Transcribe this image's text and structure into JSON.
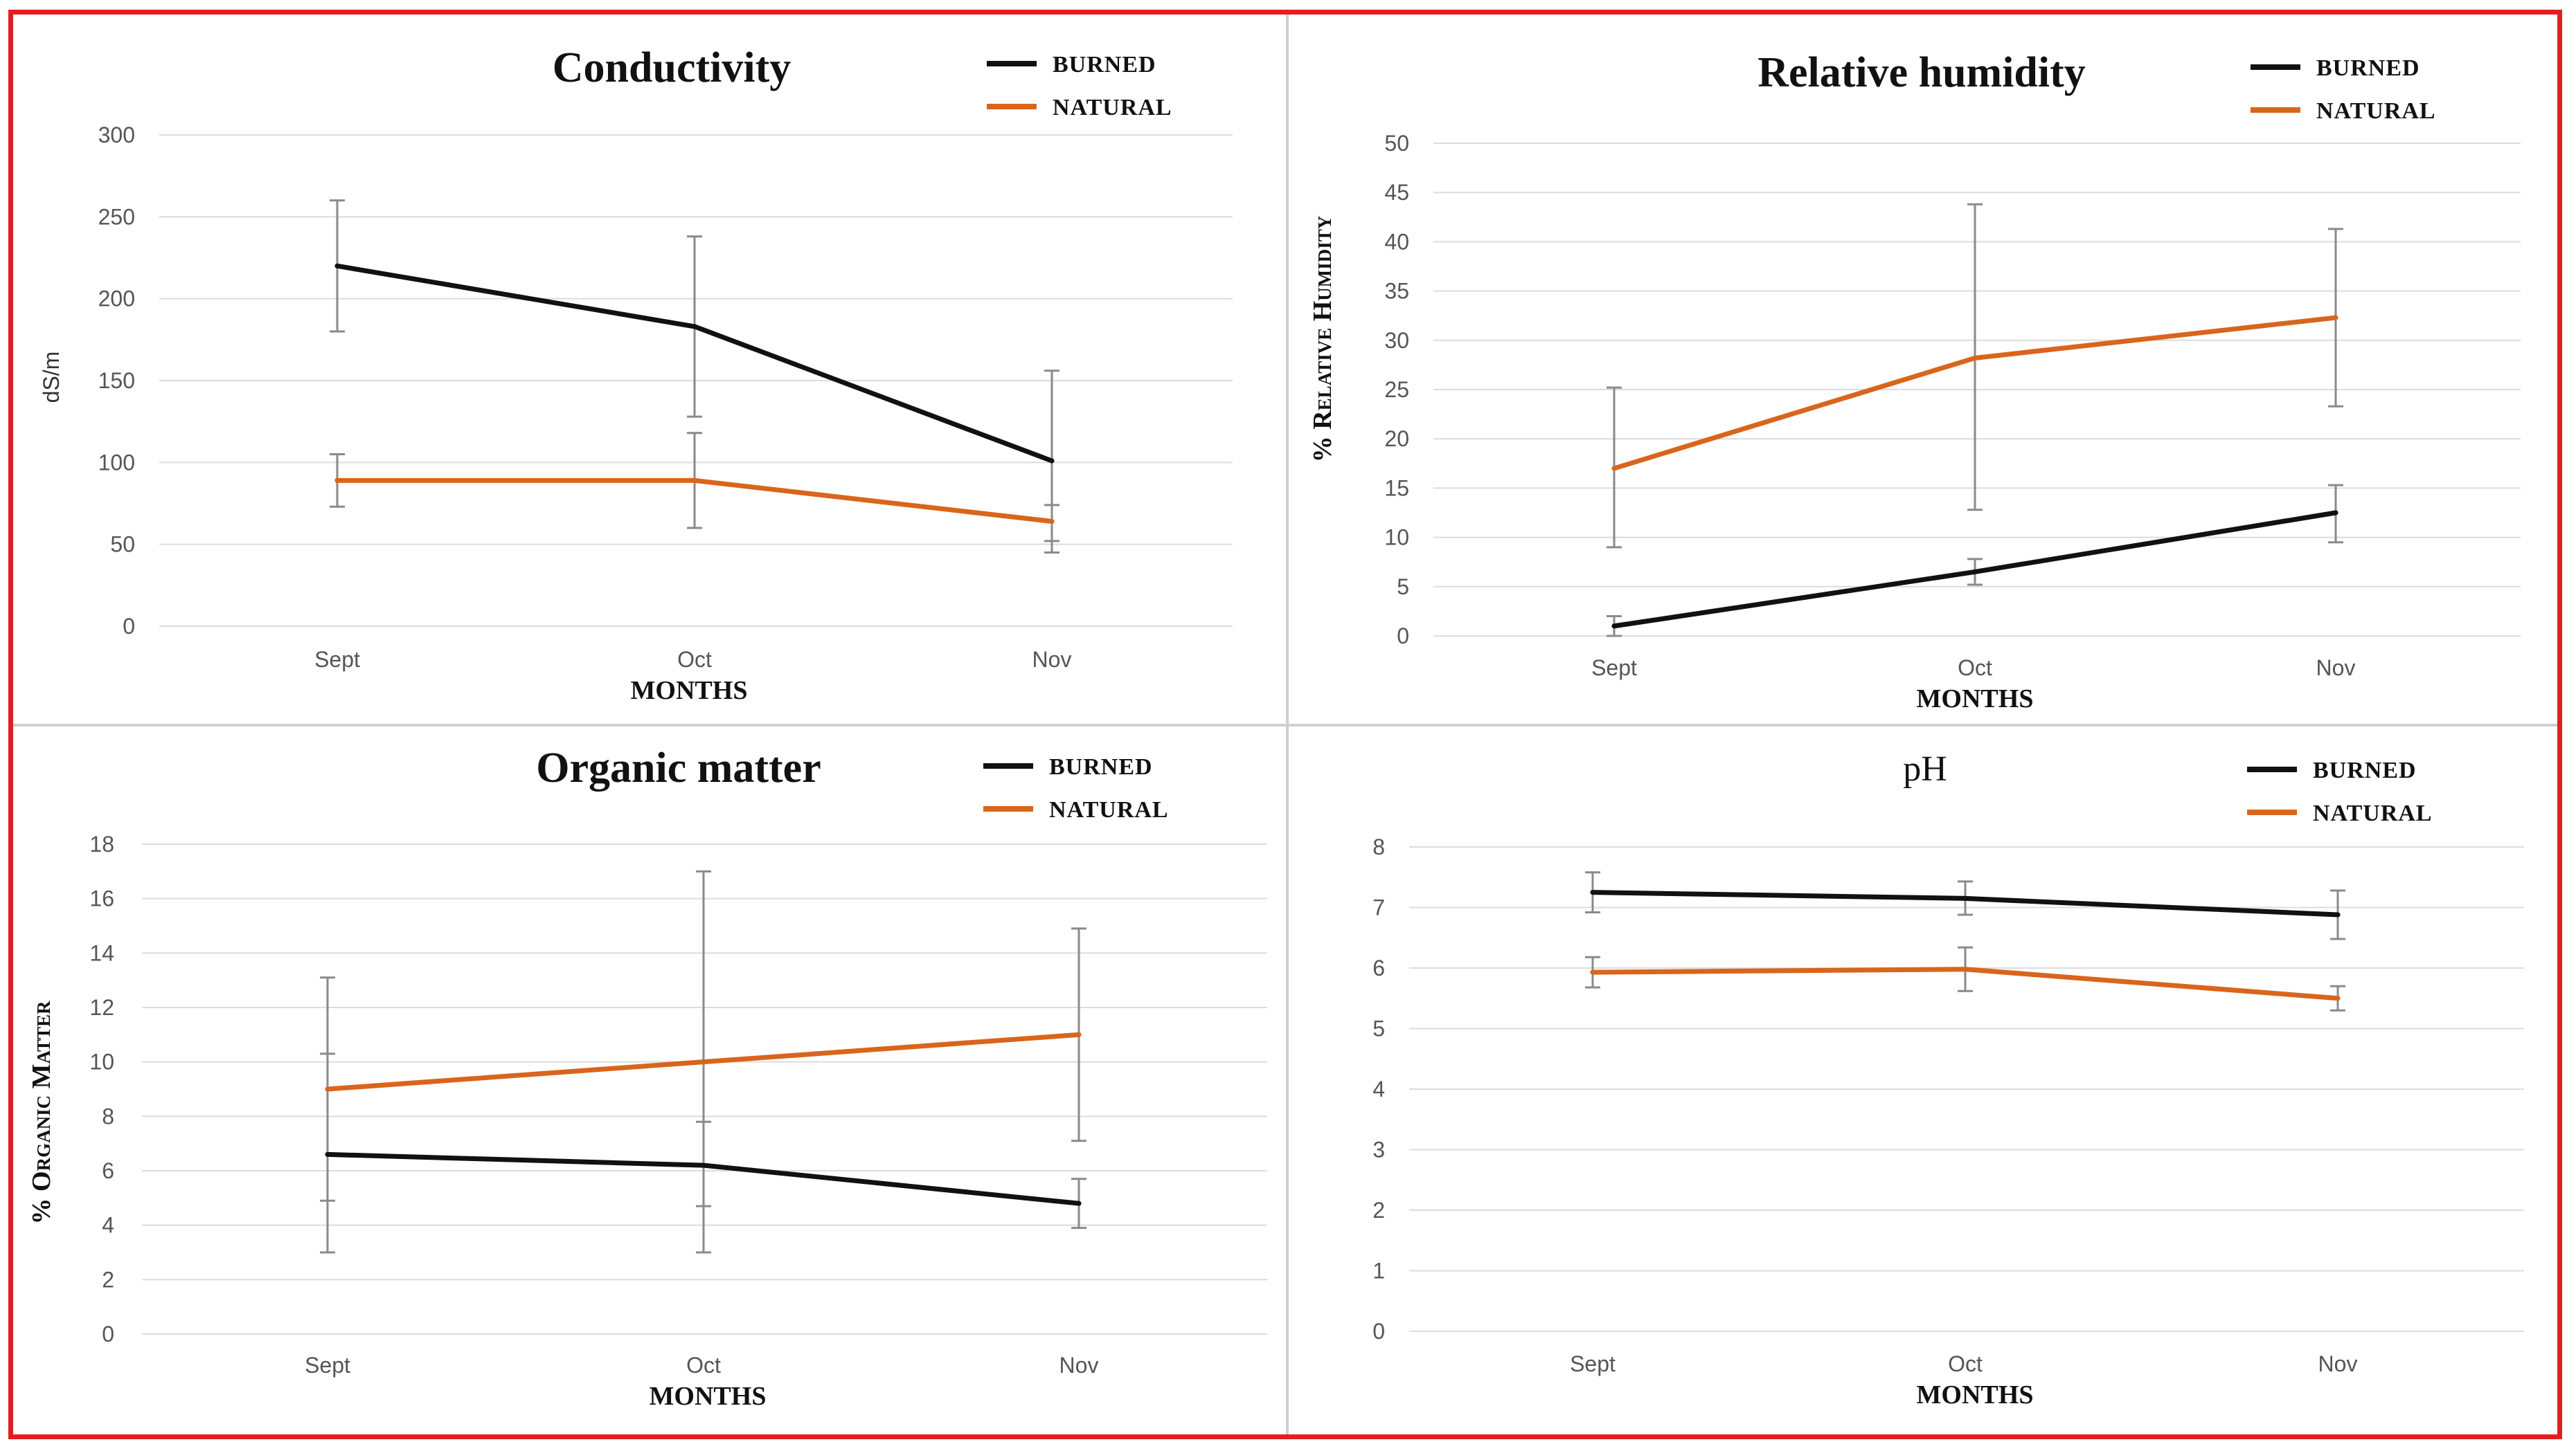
{
  "colors": {
    "burned": "#111111",
    "natural": "#d9651c",
    "grid": "#dcdcdc",
    "error_bar": "#8a8a8a",
    "frame": "#e02020"
  },
  "chart_data": [
    {
      "type": "line",
      "title": "Conductivity",
      "title_style": "bold",
      "xlabel": "MONTHS",
      "ylabel": "dS/m",
      "ylabel_style": "sans",
      "categories": [
        "Sept",
        "Oct",
        "Nov"
      ],
      "ylim": [
        0,
        300
      ],
      "yticks": [
        0,
        50,
        100,
        150,
        200,
        250,
        300
      ],
      "grid": true,
      "legend": "top-right",
      "series": [
        {
          "name": "BURNED",
          "color": "#111111",
          "values": [
            220,
            183,
            101
          ],
          "err_low": [
            180,
            128,
            45
          ],
          "err_high": [
            260,
            238,
            156
          ]
        },
        {
          "name": "NATURAL",
          "color": "#d9651c",
          "values": [
            89,
            89,
            64
          ],
          "err_low": [
            73,
            60,
            52
          ],
          "err_high": [
            105,
            118,
            74
          ]
        }
      ]
    },
    {
      "type": "line",
      "title": "Relative humidity",
      "title_style": "bold",
      "xlabel": "MONTHS",
      "ylabel": "% Relative Humidity",
      "ylabel_style": "serif",
      "categories": [
        "Sept",
        "Oct",
        "Nov"
      ],
      "ylim": [
        0,
        50
      ],
      "yticks": [
        0,
        5,
        10,
        15,
        20,
        25,
        30,
        35,
        40,
        45,
        50
      ],
      "grid": true,
      "legend": "top-right",
      "series": [
        {
          "name": "BURNED",
          "color": "#111111",
          "values": [
            1,
            6.5,
            12.5
          ],
          "err_low": [
            0,
            5.2,
            9.5
          ],
          "err_high": [
            2,
            7.8,
            15.3
          ]
        },
        {
          "name": "NATURAL",
          "color": "#d9651c",
          "values": [
            17,
            28.2,
            32.3
          ],
          "err_low": [
            9,
            12.8,
            23.3
          ],
          "err_high": [
            25.2,
            43.8,
            41.3
          ]
        }
      ]
    },
    {
      "type": "line",
      "title": "Organic matter",
      "title_style": "bold",
      "xlabel": "MONTHS",
      "ylabel": "% Organic Matter",
      "ylabel_style": "serif",
      "categories": [
        "Sept",
        "Oct",
        "Nov"
      ],
      "ylim": [
        0,
        18
      ],
      "yticks": [
        0,
        2,
        4,
        6,
        8,
        10,
        12,
        14,
        16,
        18
      ],
      "grid": true,
      "legend": "top-right",
      "series": [
        {
          "name": "BURNED",
          "color": "#111111",
          "values": [
            6.6,
            6.2,
            4.8
          ],
          "err_low": [
            3,
            3,
            3.9
          ],
          "err_high": [
            10.3,
            7.8,
            5.7
          ]
        },
        {
          "name": "NATURAL",
          "color": "#d9651c",
          "values": [
            9,
            10,
            11
          ],
          "err_low": [
            4.9,
            4.7,
            7.1
          ],
          "err_high": [
            13.1,
            17,
            14.9
          ]
        }
      ]
    },
    {
      "type": "line",
      "title": "pH",
      "title_style": "plain",
      "xlabel": "MONTHS",
      "ylabel": "",
      "ylabel_style": "serif",
      "categories": [
        "Sept",
        "Oct",
        "Nov"
      ],
      "ylim": [
        0,
        8
      ],
      "yticks": [
        0,
        1,
        2,
        3,
        4,
        5,
        6,
        7,
        8
      ],
      "grid": true,
      "legend": "top-right",
      "series": [
        {
          "name": "BURNED",
          "color": "#111111",
          "values": [
            7.25,
            7.15,
            6.88
          ],
          "err_low": [
            6.92,
            6.88,
            6.48
          ],
          "err_high": [
            7.58,
            7.43,
            7.28
          ]
        },
        {
          "name": "NATURAL",
          "color": "#d9651c",
          "values": [
            5.93,
            5.98,
            5.5
          ],
          "err_low": [
            5.68,
            5.62,
            5.3
          ],
          "err_high": [
            6.18,
            6.34,
            5.7
          ]
        }
      ]
    }
  ]
}
